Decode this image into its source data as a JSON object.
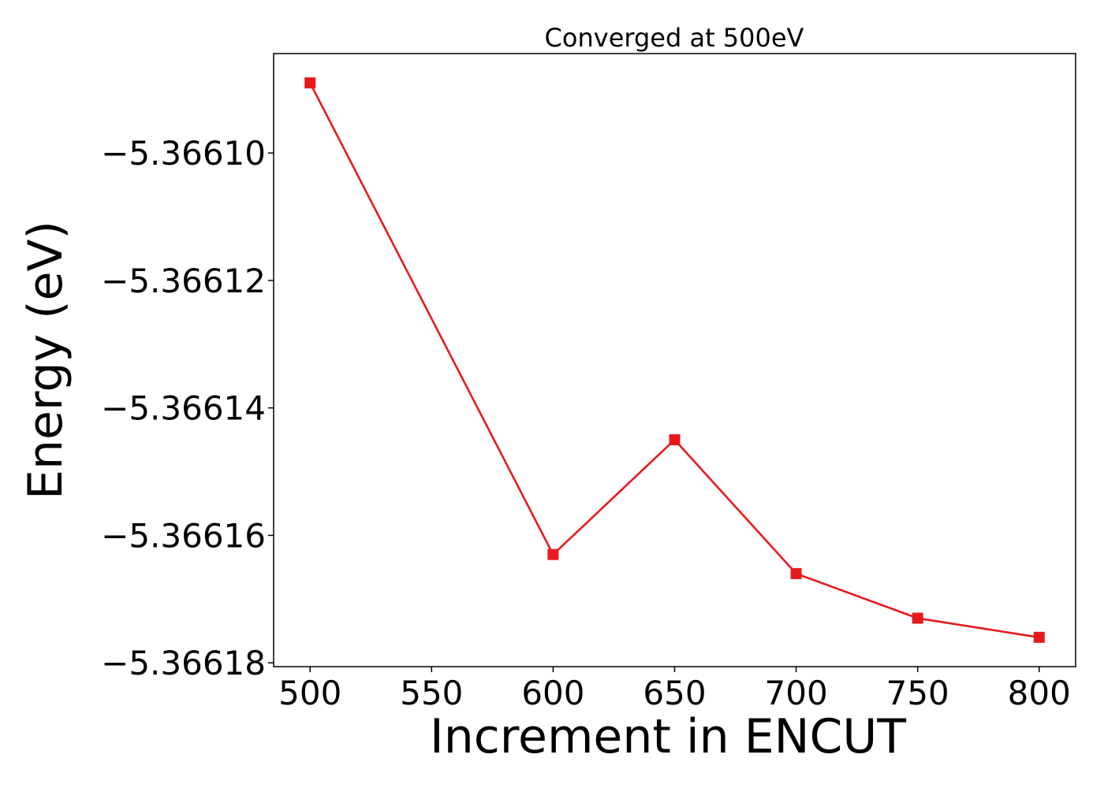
{
  "chart_data": {
    "type": "line",
    "title": "Converged at 500eV",
    "xlabel": "Increment in ENCUT",
    "ylabel": "Energy (eV)",
    "x": [
      500,
      600,
      650,
      700,
      750,
      800
    ],
    "series": [
      {
        "values": [
          -5.366089,
          -5.366163,
          -5.366145,
          -5.366166,
          -5.366173,
          -5.366176
        ],
        "color": "#e8191c",
        "marker": "square"
      }
    ],
    "xlim": [
      485,
      815
    ],
    "ylim": [
      -5.3661806,
      -5.3660844
    ],
    "xticks": [
      500,
      550,
      600,
      650,
      700,
      750,
      800
    ],
    "xtick_labels": [
      "500",
      "550",
      "600",
      "650",
      "700",
      "750",
      "800"
    ],
    "yticks": [
      -5.3661,
      -5.36612,
      -5.36614,
      -5.36616,
      -5.36618
    ],
    "ytick_labels": [
      "−5.36610",
      "−5.36612",
      "−5.36614",
      "−5.36616",
      "−5.36618"
    ],
    "grid": false,
    "legend": "none"
  }
}
